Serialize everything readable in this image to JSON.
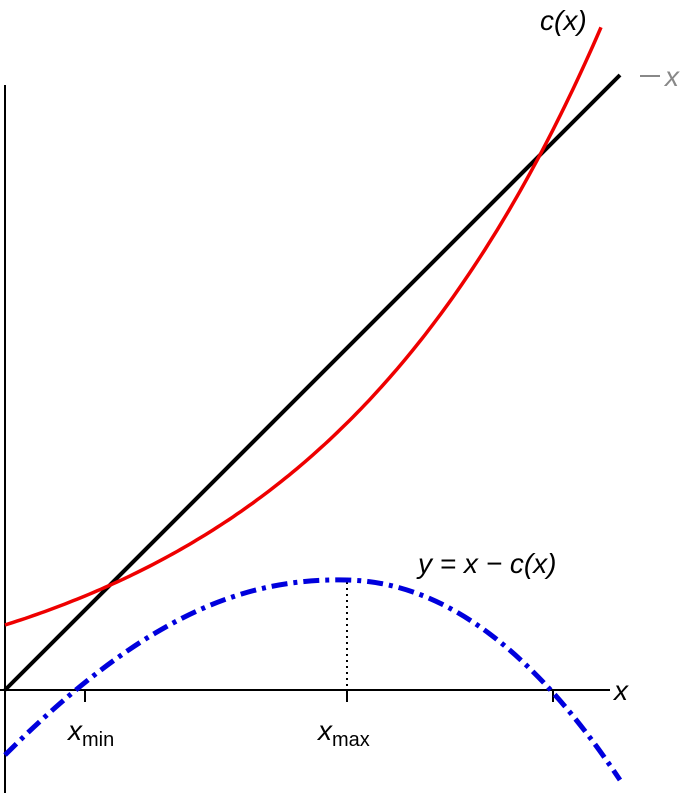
{
  "curve_label": "c(x)",
  "line_label": "x",
  "difference_label": "y = x − c(x)",
  "axis_label": "x",
  "ticks": [
    {
      "base": "x",
      "sub": "min"
    },
    {
      "base": "x",
      "sub": "max"
    }
  ]
}
